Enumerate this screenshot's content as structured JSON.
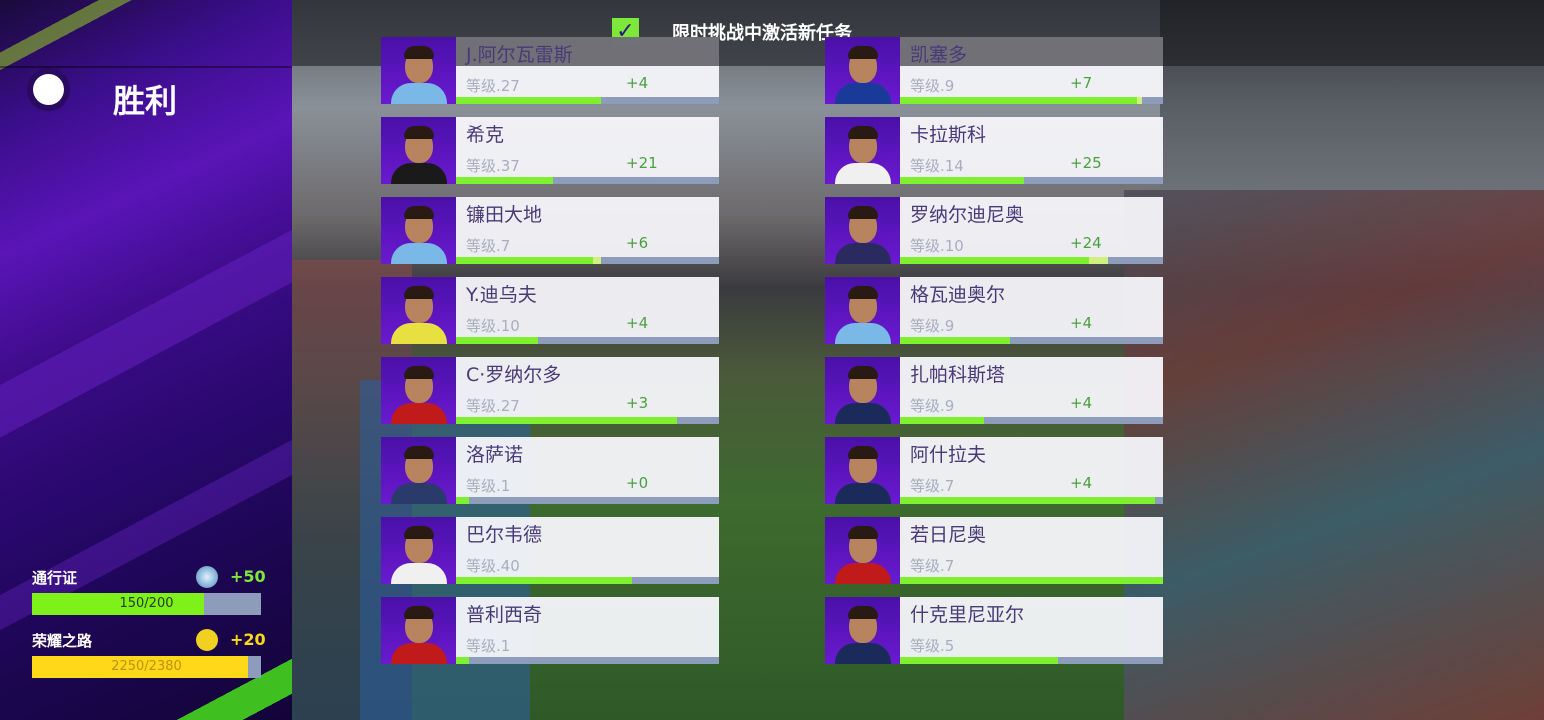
{
  "result": {
    "title": "胜利"
  },
  "task_banner": {
    "checked": true,
    "text": "限时挑战中激活新任务"
  },
  "progress": [
    {
      "label": "通行证",
      "icon": "soccer-ball-exp-icon",
      "gain": "+50",
      "value": "150/200",
      "fraction": 0.75,
      "color": "#7ef01a",
      "gain_color": "#7ee83a"
    },
    {
      "label": "荣耀之路",
      "icon": "trophy-coin-icon",
      "gain": "+20",
      "value": "2250/2380",
      "fraction": 0.945,
      "color": "#ffd81a",
      "gain_color": "#ffd81a"
    }
  ],
  "players": [
    {
      "name": "J.阿尔瓦雷斯",
      "level": "等级.27",
      "gain": "+4",
      "progress": 0.55,
      "shirt": "#7ab8e8"
    },
    {
      "name": "凯塞多",
      "level": "等级.9",
      "gain": "+7",
      "progress": 0.9,
      "extra": 0.02,
      "shirt": "#1a3a9a"
    },
    {
      "name": "希克",
      "level": "等级.37",
      "gain": "+21",
      "progress": 0.37,
      "shirt": "#1a1a1a"
    },
    {
      "name": "卡拉斯科",
      "level": "等级.14",
      "gain": "+25",
      "progress": 0.47,
      "shirt": "#f0f0f0"
    },
    {
      "name": "镰田大地",
      "level": "等级.7",
      "gain": "+6",
      "progress": 0.52,
      "extra": 0.03,
      "shirt": "#7ab8e8"
    },
    {
      "name": "罗纳尔迪尼奥",
      "level": "等级.10",
      "gain": "+24",
      "progress": 0.72,
      "extra": 0.07,
      "shirt": "#2a2a60"
    },
    {
      "name": "Y.迪乌夫",
      "level": "等级.10",
      "gain": "+4",
      "progress": 0.31,
      "shirt": "#e8e040"
    },
    {
      "name": "格瓦迪奥尔",
      "level": "等级.9",
      "gain": "+4",
      "progress": 0.42,
      "shirt": "#7ab8e8"
    },
    {
      "name": "C·罗纳尔多",
      "level": "等级.27",
      "gain": "+3",
      "progress": 0.84,
      "shirt": "#c01a1a"
    },
    {
      "name": "扎帕科斯塔",
      "level": "等级.9",
      "gain": "+4",
      "progress": 0.32,
      "shirt": "#1a2a5a"
    },
    {
      "name": "洛萨诺",
      "level": "等级.1",
      "gain": "+0",
      "progress": 0.05,
      "shirt": "#2a3a6a"
    },
    {
      "name": "阿什拉夫",
      "level": "等级.7",
      "gain": "+4",
      "progress": 0.97,
      "shirt": "#1a2a5a"
    },
    {
      "name": "巴尔韦德",
      "level": "等级.40",
      "gain": "",
      "progress": 0.67,
      "shirt": "#f0f0f0"
    },
    {
      "name": "若日尼奥",
      "level": "等级.7",
      "gain": "",
      "progress": 1.0,
      "shirt": "#c01a1a"
    },
    {
      "name": "普利西奇",
      "level": "等级.1",
      "gain": "",
      "progress": 0.05,
      "shirt": "#c01a1a"
    },
    {
      "name": "什克里尼亚尔",
      "level": "等级.5",
      "gain": "",
      "progress": 0.6,
      "shirt": "#1a2a5a"
    }
  ]
}
